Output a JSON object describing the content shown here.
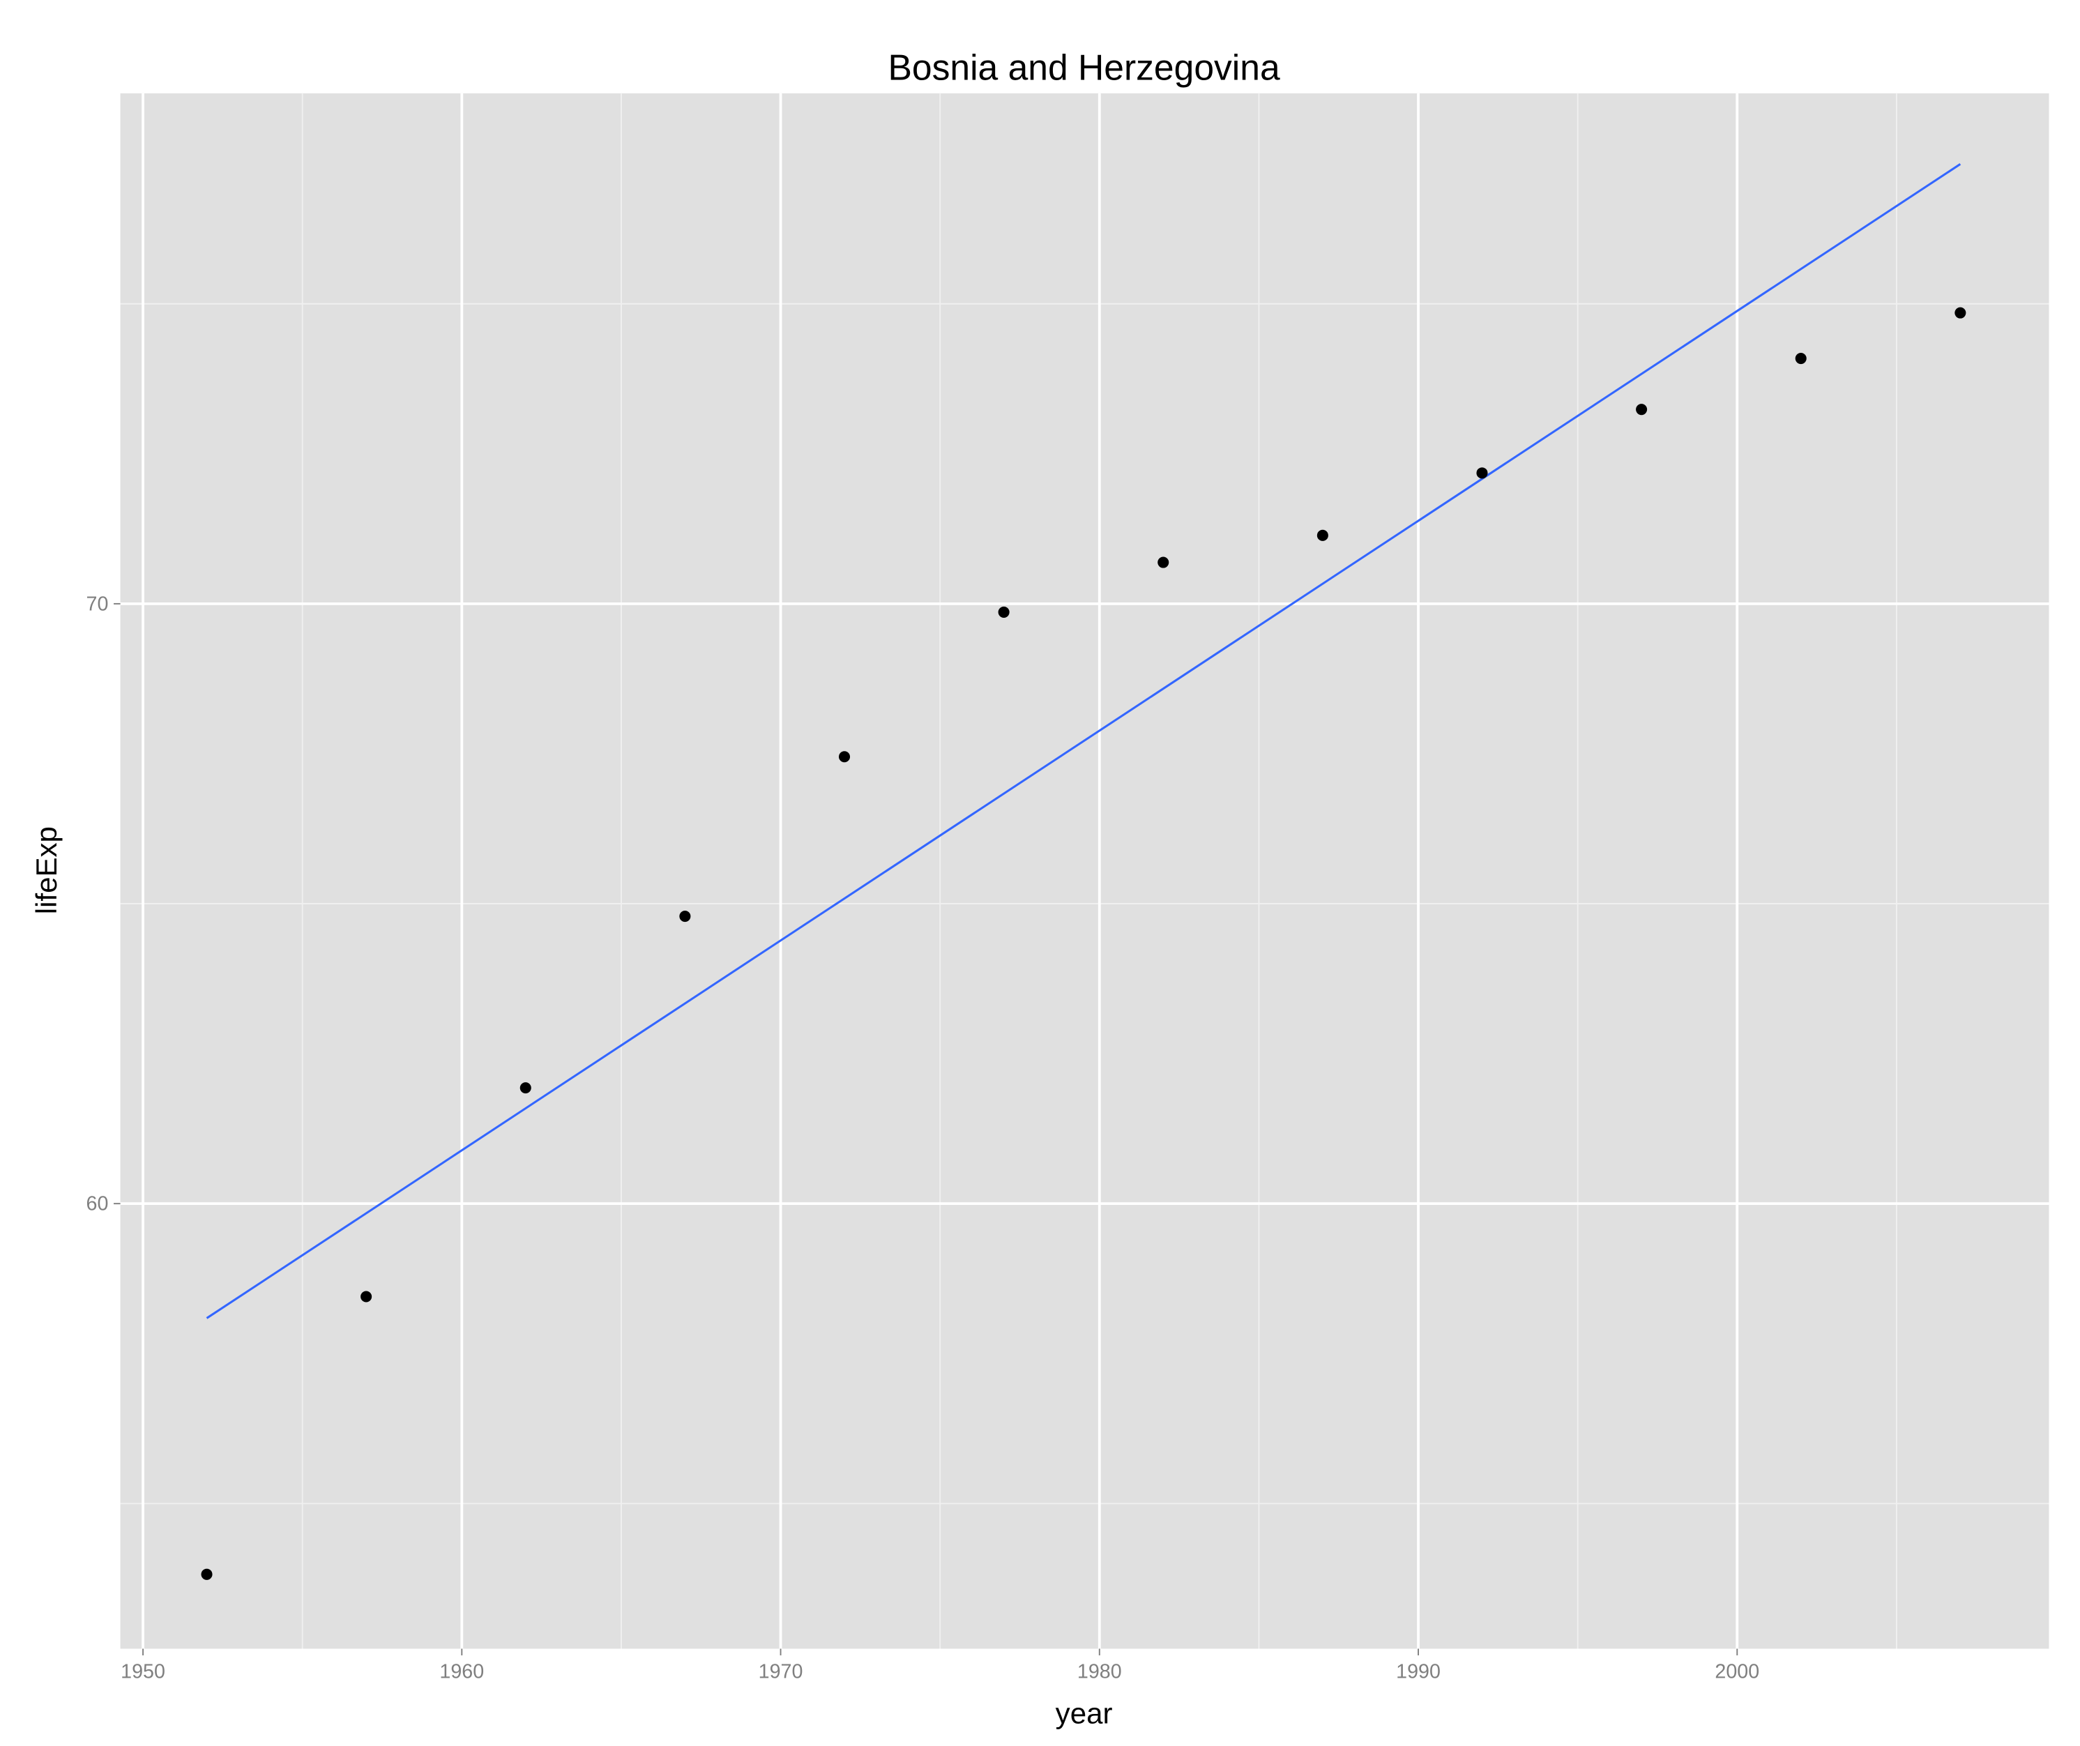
{
  "chart_data": {
    "type": "scatter",
    "title": "Bosnia and Herzegovina",
    "x_label": "year",
    "y_label": "lifeExp",
    "x": [
      1952,
      1957,
      1962,
      1967,
      1972,
      1977,
      1982,
      1987,
      1992,
      1997,
      2002,
      2007
    ],
    "values": [
      53.82,
      58.45,
      61.93,
      64.79,
      67.45,
      69.86,
      70.69,
      71.14,
      72.18,
      73.24,
      74.09,
      74.85
    ],
    "color": "#000000",
    "fit_line": {
      "x": [
        1952,
        2007
      ],
      "values": [
        58.09,
        77.33
      ],
      "color": "#3366ff"
    },
    "xlim": [
      1949.29,
      2009.78
    ],
    "ylim": [
      52.58,
      78.51
    ],
    "xticks": [
      1950,
      1960,
      1970,
      1980,
      1990,
      2000
    ],
    "yticks": [
      60,
      70
    ],
    "x_minor_ticks": [
      1955,
      1965,
      1975,
      1985,
      1995,
      2005
    ],
    "y_minor_ticks": [
      55,
      65,
      75
    ],
    "grid": true,
    "panel_color": "#e0e0e0"
  }
}
